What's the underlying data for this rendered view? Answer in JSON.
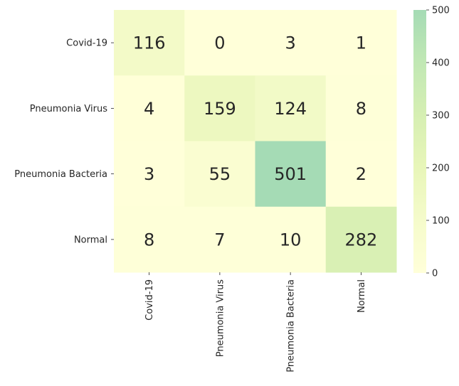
{
  "chart_data": {
    "type": "heatmap",
    "title": "",
    "xlabel": "",
    "ylabel": "",
    "row_labels": [
      "Covid-19",
      "Pneumonia Virus",
      "Pneumonia Bacteria",
      "Normal"
    ],
    "col_labels": [
      "Covid-19",
      "Pneumonia Virus",
      "Pneumonia Bacteria",
      "Normal"
    ],
    "values": [
      [
        116,
        0,
        3,
        1
      ],
      [
        4,
        159,
        124,
        8
      ],
      [
        3,
        55,
        501,
        2
      ],
      [
        8,
        7,
        10,
        282
      ]
    ],
    "colorbar": {
      "range": [
        0,
        500
      ],
      "ticks": [
        "0",
        "100",
        "200",
        "300",
        "400",
        "500"
      ],
      "colors": [
        "#ffffd9",
        "#f5fbcb",
        "#e8f6b9",
        "#d6efb3",
        "#c1e8b4",
        "#a5dbb5"
      ]
    }
  }
}
